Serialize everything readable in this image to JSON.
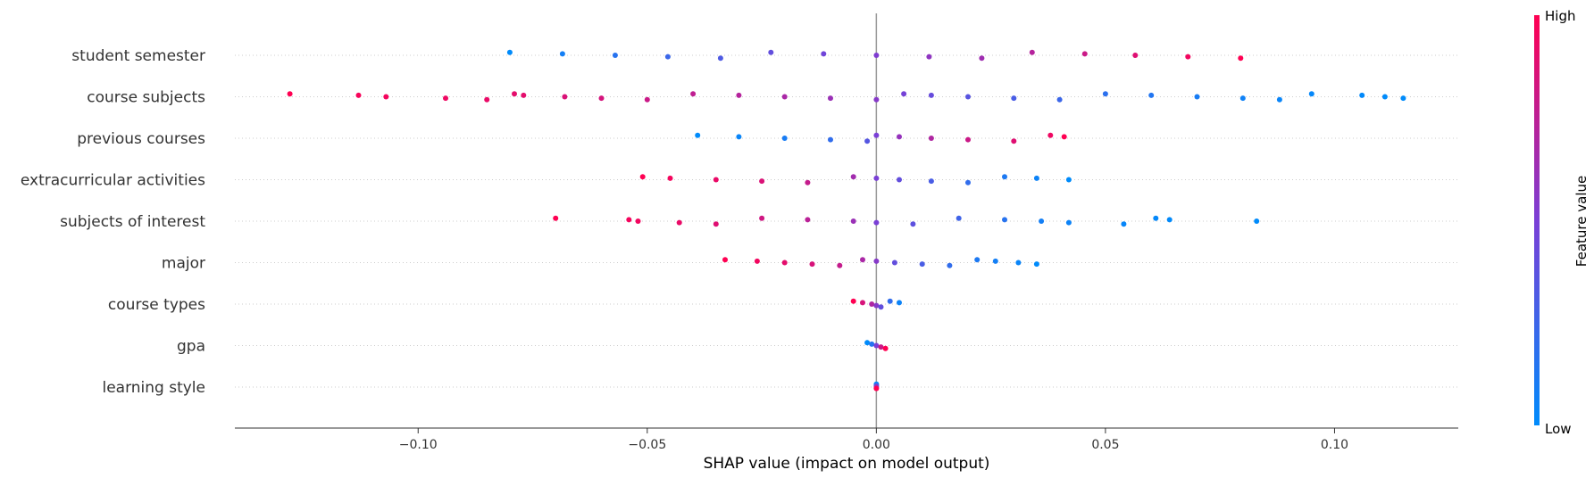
{
  "chart_data": {
    "type": "scatter",
    "subtype": "shap-beeswarm",
    "title": "",
    "xlabel": "SHAP value (impact on model output)",
    "ylabel": "",
    "xlim": [
      -0.14,
      0.127
    ],
    "xticks": [
      -0.1,
      -0.05,
      0.0,
      0.05,
      0.1
    ],
    "xtick_labels": [
      "−0.10",
      "−0.05",
      "0.00",
      "0.05",
      "0.10"
    ],
    "grid": false,
    "zero_line": true,
    "colorbar": {
      "label": "Feature value",
      "high_label": "High",
      "low_label": "Low",
      "low_color": "#008bfb",
      "mid_color": "#7a3fd6",
      "high_color": "#ff0052"
    },
    "features": [
      {
        "name": "student semester",
        "points": [
          [
            -0.08,
            0.0
          ],
          [
            -0.0685,
            0.08
          ],
          [
            -0.057,
            0.16
          ],
          [
            -0.0455,
            0.24
          ],
          [
            -0.034,
            0.32
          ],
          [
            -0.023,
            0.4
          ],
          [
            -0.0115,
            0.46
          ],
          [
            0.0,
            0.52
          ],
          [
            0.0115,
            0.58
          ],
          [
            0.023,
            0.64
          ],
          [
            0.034,
            0.72
          ],
          [
            0.0455,
            0.8
          ],
          [
            0.0565,
            0.88
          ],
          [
            0.068,
            0.95
          ],
          [
            0.0795,
            1.0
          ]
        ]
      },
      {
        "name": "course subjects",
        "points": [
          [
            -0.128,
            1.0
          ],
          [
            -0.113,
            0.97
          ],
          [
            -0.107,
            0.96
          ],
          [
            -0.094,
            0.94
          ],
          [
            -0.085,
            0.92
          ],
          [
            -0.079,
            0.9
          ],
          [
            -0.077,
            0.9
          ],
          [
            -0.068,
            0.86
          ],
          [
            -0.06,
            0.84
          ],
          [
            -0.05,
            0.8
          ],
          [
            -0.04,
            0.76
          ],
          [
            -0.03,
            0.72
          ],
          [
            -0.02,
            0.68
          ],
          [
            -0.01,
            0.62
          ],
          [
            0.0,
            0.55
          ],
          [
            0.006,
            0.48
          ],
          [
            0.012,
            0.42
          ],
          [
            0.02,
            0.36
          ],
          [
            0.03,
            0.3
          ],
          [
            0.04,
            0.24
          ],
          [
            0.05,
            0.18
          ],
          [
            0.06,
            0.14
          ],
          [
            0.07,
            0.1
          ],
          [
            0.08,
            0.06
          ],
          [
            0.088,
            0.04
          ],
          [
            0.095,
            0.02
          ],
          [
            0.106,
            0.01
          ],
          [
            0.111,
            0.0
          ],
          [
            0.115,
            0.0
          ]
        ]
      },
      {
        "name": "previous courses",
        "points": [
          [
            -0.039,
            0.0
          ],
          [
            -0.03,
            0.04
          ],
          [
            -0.02,
            0.1
          ],
          [
            -0.01,
            0.2
          ],
          [
            -0.002,
            0.35
          ],
          [
            0.0,
            0.5
          ],
          [
            0.005,
            0.6
          ],
          [
            0.012,
            0.7
          ],
          [
            0.02,
            0.8
          ],
          [
            0.03,
            0.88
          ],
          [
            0.038,
            0.94
          ],
          [
            0.041,
            1.0
          ]
        ]
      },
      {
        "name": "extracurricular activities",
        "points": [
          [
            -0.051,
            1.0
          ],
          [
            -0.045,
            0.96
          ],
          [
            -0.035,
            0.92
          ],
          [
            -0.025,
            0.86
          ],
          [
            -0.015,
            0.78
          ],
          [
            -0.005,
            0.65
          ],
          [
            0.0,
            0.5
          ],
          [
            0.005,
            0.4
          ],
          [
            0.012,
            0.3
          ],
          [
            0.02,
            0.2
          ],
          [
            0.028,
            0.12
          ],
          [
            0.035,
            0.05
          ],
          [
            0.042,
            0.0
          ]
        ]
      },
      {
        "name": "subjects of interest",
        "points": [
          [
            -0.07,
            1.0
          ],
          [
            -0.054,
            0.96
          ],
          [
            -0.052,
            0.95
          ],
          [
            -0.043,
            0.92
          ],
          [
            -0.035,
            0.88
          ],
          [
            -0.025,
            0.82
          ],
          [
            -0.015,
            0.74
          ],
          [
            -0.005,
            0.62
          ],
          [
            0.0,
            0.5
          ],
          [
            0.008,
            0.38
          ],
          [
            0.018,
            0.26
          ],
          [
            0.028,
            0.16
          ],
          [
            0.036,
            0.08
          ],
          [
            0.042,
            0.05
          ],
          [
            0.054,
            0.03
          ],
          [
            0.061,
            0.02
          ],
          [
            0.064,
            0.01
          ],
          [
            0.083,
            0.0
          ]
        ]
      },
      {
        "name": "major",
        "points": [
          [
            -0.033,
            1.0
          ],
          [
            -0.026,
            0.95
          ],
          [
            -0.02,
            0.9
          ],
          [
            -0.014,
            0.85
          ],
          [
            -0.008,
            0.78
          ],
          [
            -0.003,
            0.68
          ],
          [
            0.0,
            0.55
          ],
          [
            0.004,
            0.4
          ],
          [
            0.01,
            0.3
          ],
          [
            0.016,
            0.2
          ],
          [
            0.022,
            0.12
          ],
          [
            0.026,
            0.08
          ],
          [
            0.031,
            0.04
          ],
          [
            0.035,
            0.0
          ]
        ]
      },
      {
        "name": "course types",
        "points": [
          [
            -0.005,
            1.0
          ],
          [
            -0.003,
            0.85
          ],
          [
            -0.001,
            0.7
          ],
          [
            0.0,
            0.55
          ],
          [
            0.001,
            0.4
          ],
          [
            0.003,
            0.2
          ],
          [
            0.005,
            0.05
          ]
        ]
      },
      {
        "name": "gpa",
        "points": [
          [
            -0.002,
            0.0
          ],
          [
            -0.001,
            0.15
          ],
          [
            0.0,
            0.5
          ],
          [
            0.001,
            0.8
          ],
          [
            0.002,
            1.0
          ]
        ]
      },
      {
        "name": "learning style",
        "points": [
          [
            0.0,
            0.0
          ],
          [
            0.0,
            0.3
          ],
          [
            0.0,
            0.6
          ],
          [
            0.0,
            1.0
          ]
        ]
      }
    ]
  }
}
